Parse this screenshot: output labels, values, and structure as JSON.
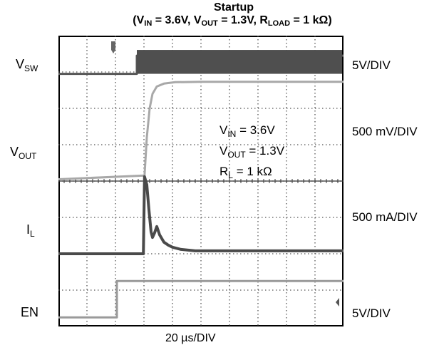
{
  "chart_data": {
    "type": "line",
    "title": "Startup",
    "subtitle": {
      "prefix": "(V",
      "vin_sub": "IN",
      "vin_val": " = 3.6V, V",
      "vout_sub": "OUT",
      "vout_val": " = 1.3V, R",
      "rload_sub": "LOAD",
      "rload_val": " = 1 kΩ)"
    },
    "xlabel": "20 µs/DIV",
    "x_divisions": 10,
    "y_divisions": 8,
    "grid": true,
    "channels": [
      {
        "name_main": "V",
        "name_sub": "SW",
        "scale": "5V/DIV"
      },
      {
        "name_main": "V",
        "name_sub": "OUT",
        "scale": "500 mV/DIV"
      },
      {
        "name_main": "I",
        "name_sub": "L",
        "scale": "500 mA/DIV"
      },
      {
        "name_main": "EN",
        "name_sub": "",
        "scale": "5V/DIV"
      }
    ],
    "annotation": {
      "line1_main": "V",
      "line1_sub": "IN",
      "line1_val": " = 3.6V",
      "line2_main": "V",
      "line2_sub": "OUT",
      "line2_val": " = 1.3V",
      "line3_main": "R",
      "line3_sub": "L",
      "line3_val": " = 1 kΩ"
    },
    "series": [
      {
        "name": "EN",
        "color": "#9a9a9a",
        "x_div": [
          0,
          2.05,
          2.05,
          10
        ],
        "level_div": [
          0,
          0,
          1.0,
          1.0
        ]
      },
      {
        "name": "VSW",
        "color": "#555555",
        "x_div": [
          0,
          2.75,
          2.75,
          10
        ],
        "level_div": [
          0,
          0,
          0.5,
          0.5
        ]
      },
      {
        "name": "VOUT",
        "color": "#a8a8a8",
        "x_div": [
          0,
          3.02,
          3.1,
          3.2,
          3.3,
          3.45,
          3.7,
          4.1,
          5,
          10
        ],
        "level_div": [
          0,
          0.1,
          1.15,
          1.95,
          2.35,
          2.55,
          2.63,
          2.67,
          2.68,
          2.68
        ]
      },
      {
        "name": "IL",
        "color": "#4a4a4a",
        "x_div": [
          0,
          2.98,
          3.02,
          3.1,
          3.17,
          3.25,
          3.3,
          3.37,
          3.45,
          3.55,
          3.7,
          3.85,
          4.0,
          4.3,
          4.8,
          10
        ],
        "level_div": [
          0,
          0,
          2.12,
          1.9,
          1.25,
          0.6,
          0.45,
          0.57,
          0.75,
          0.52,
          0.32,
          0.24,
          0.18,
          0.12,
          0.08,
          0.08
        ]
      }
    ]
  }
}
